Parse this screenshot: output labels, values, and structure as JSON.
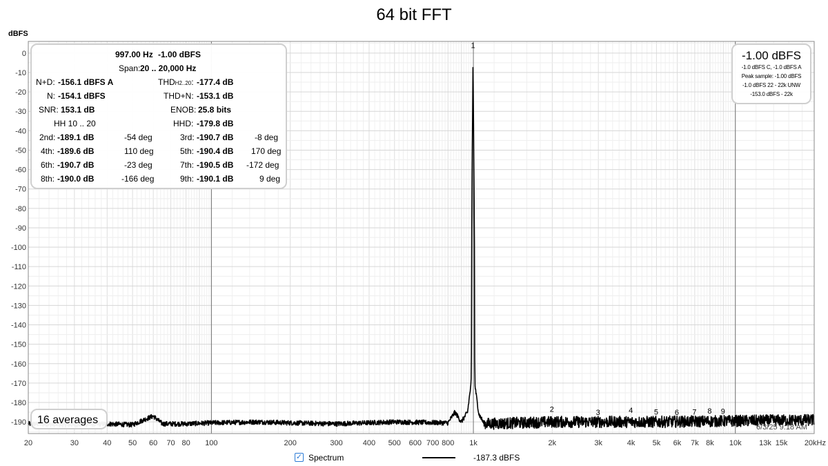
{
  "title": "64 bit FFT",
  "y_unit": "dBFS",
  "stats": {
    "fundamental_freq": "997.00 Hz",
    "fundamental_level": "-1.00 dBFS",
    "span_label": "Span:",
    "span_value": "20 .. 20,000 Hz",
    "nd_label": "N+D:",
    "nd_value": "-156.1 dBFS A",
    "thd_label": "THD",
    "thd_sub": "H2..20",
    "thd_label_end": ":",
    "thd_value": "-177.4 dB",
    "n_label": "N:",
    "n_value": "-154.1 dBFS",
    "thdn_label": "THD+N:",
    "thdn_value": "-153.1 dB",
    "snr_label": "SNR:",
    "snr_value": "153.1 dB",
    "enob_label": "ENOB:",
    "enob_value": "25.8 bits",
    "hh_label": "HH 10 .. 20",
    "hhd_label": "HHD:",
    "hhd_value": "-179.8 dB",
    "harmonics": [
      {
        "label": "2nd:",
        "value": "-189.1 dB",
        "phase": "-54 deg"
      },
      {
        "label": "3rd:",
        "value": "-190.7 dB",
        "phase": "-8 deg"
      },
      {
        "label": "4th:",
        "value": "-189.6 dB",
        "phase": "110 deg"
      },
      {
        "label": "5th:",
        "value": "-190.4 dB",
        "phase": "170 deg"
      },
      {
        "label": "6th:",
        "value": "-190.7 dB",
        "phase": "-23 deg"
      },
      {
        "label": "7th:",
        "value": "-190.5 dB",
        "phase": "-172 deg"
      },
      {
        "label": "8th:",
        "value": "-190.0 dB",
        "phase": "-166 deg"
      },
      {
        "label": "9th:",
        "value": "-190.1 dB",
        "phase": "9 deg"
      }
    ]
  },
  "peak": {
    "value": "-1.00 dBFS",
    "lines": [
      "-1.0 dBFS C, -1.0 dBFS A",
      "Peak sample: -1.00 dBFS",
      "-1.0 dBFS 22 - 22k UNW",
      "-153.0 dBFS - 22k"
    ]
  },
  "averages": "16 averages",
  "timestamp": "6/3/25 9:18 AM",
  "legend": {
    "checked": true,
    "name": "Spectrum",
    "value": "-187.3 dBFS",
    "color": "#000000"
  },
  "chart_data": {
    "type": "line",
    "xscale": "log",
    "xlim": [
      20,
      20000
    ],
    "ylim": [
      -196,
      6
    ],
    "ylabel": "dBFS",
    "grid": true,
    "x_ticks": [
      {
        "v": 20,
        "label": "20"
      },
      {
        "v": 30,
        "label": "30"
      },
      {
        "v": 40,
        "label": "40"
      },
      {
        "v": 50,
        "label": "50"
      },
      {
        "v": 60,
        "label": "60"
      },
      {
        "v": 70,
        "label": "70"
      },
      {
        "v": 80,
        "label": "80"
      },
      {
        "v": 100,
        "label": "100"
      },
      {
        "v": 200,
        "label": "200"
      },
      {
        "v": 300,
        "label": "300"
      },
      {
        "v": 400,
        "label": "400"
      },
      {
        "v": 500,
        "label": "500"
      },
      {
        "v": 600,
        "label": "600"
      },
      {
        "v": 700,
        "label": "700"
      },
      {
        "v": 800,
        "label": "800"
      },
      {
        "v": 1000,
        "label": "1k"
      },
      {
        "v": 2000,
        "label": "2k"
      },
      {
        "v": 3000,
        "label": "3k"
      },
      {
        "v": 4000,
        "label": "4k"
      },
      {
        "v": 5000,
        "label": "5k"
      },
      {
        "v": 6000,
        "label": "6k"
      },
      {
        "v": 7000,
        "label": "7k"
      },
      {
        "v": 8000,
        "label": "8k"
      },
      {
        "v": 10000,
        "label": "10k"
      },
      {
        "v": 13000,
        "label": "13k"
      },
      {
        "v": 15000,
        "label": "15k"
      },
      {
        "v": 20000,
        "label": "20kHz"
      }
    ],
    "y_ticks": [
      0,
      -10,
      -20,
      -30,
      -40,
      -50,
      -60,
      -70,
      -80,
      -90,
      -100,
      -110,
      -120,
      -130,
      -140,
      -150,
      -160,
      -170,
      -180,
      -190
    ],
    "series": [
      {
        "color": "#000000",
        "noise_floor_dbfs": -190,
        "points": [
          [
            20,
            -191
          ],
          [
            30,
            -191.5
          ],
          [
            40,
            -191
          ],
          [
            50,
            -191.5
          ],
          [
            55,
            -189
          ],
          [
            60,
            -187
          ],
          [
            65,
            -191
          ],
          [
            80,
            -191
          ],
          [
            100,
            -190.5
          ],
          [
            150,
            -190
          ],
          [
            200,
            -190.5
          ],
          [
            300,
            -191
          ],
          [
            500,
            -190
          ],
          [
            800,
            -190.5
          ],
          [
            850,
            -185
          ],
          [
            900,
            -190
          ],
          [
            950,
            -185
          ],
          [
            980,
            -170
          ],
          [
            990,
            -120
          ],
          [
            997,
            -1
          ],
          [
            1005,
            -120
          ],
          [
            1015,
            -172
          ],
          [
            1050,
            -186
          ],
          [
            1100,
            -191
          ],
          [
            2000,
            -190
          ],
          [
            5000,
            -190
          ],
          [
            10000,
            -189.5
          ],
          [
            20000,
            -189
          ]
        ]
      }
    ],
    "harmonic_markers": [
      {
        "label": "1",
        "freq": 997,
        "level": -1
      },
      {
        "label": "2",
        "freq": 1994,
        "level": -189.1
      },
      {
        "label": "3",
        "freq": 2991,
        "level": -190.7
      },
      {
        "label": "4",
        "freq": 3988,
        "level": -189.6
      },
      {
        "label": "5",
        "freq": 4985,
        "level": -190.4
      },
      {
        "label": "6",
        "freq": 5982,
        "level": -190.7
      },
      {
        "label": "7",
        "freq": 6979,
        "level": -190.5
      },
      {
        "label": "8",
        "freq": 7976,
        "level": -190.0
      },
      {
        "label": "9",
        "freq": 8973,
        "level": -190.1
      }
    ]
  }
}
